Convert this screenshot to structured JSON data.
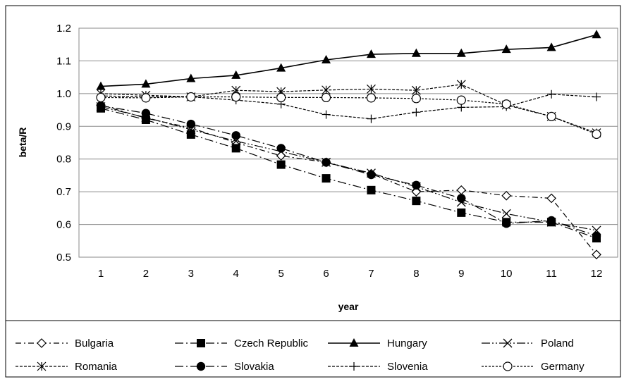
{
  "chart_data": {
    "type": "line",
    "title": "",
    "xlabel": "year",
    "ylabel": "beta/R",
    "x": [
      1,
      2,
      3,
      4,
      5,
      6,
      7,
      8,
      9,
      10,
      11,
      12
    ],
    "xticks": [
      "1",
      "2",
      "3",
      "4",
      "5",
      "6",
      "7",
      "8",
      "9",
      "10",
      "11",
      "12"
    ],
    "ylim": [
      0.5,
      1.2
    ],
    "yticks": [
      "0.5",
      "0.6",
      "0.7",
      "0.8",
      "0.9",
      "1.0",
      "1.1",
      "1.2"
    ],
    "grid": "horizontal",
    "legend_position": "bottom",
    "series": [
      {
        "name": "Bulgaria",
        "marker": "diamond-open",
        "dash": "dash-dot",
        "values": [
          0.965,
          0.925,
          0.895,
          0.85,
          0.81,
          0.79,
          0.755,
          0.7,
          0.705,
          0.688,
          0.68,
          0.508
        ]
      },
      {
        "name": "Czech Republic",
        "marker": "square-filled",
        "dash": "long-dash-dot",
        "values": [
          0.955,
          0.92,
          0.875,
          0.833,
          0.783,
          0.741,
          0.705,
          0.672,
          0.636,
          0.607,
          0.607,
          0.558
        ]
      },
      {
        "name": "Hungary",
        "marker": "triangle-filled",
        "dash": "solid",
        "values": [
          1.022,
          1.029,
          1.046,
          1.056,
          1.078,
          1.103,
          1.12,
          1.123,
          1.123,
          1.135,
          1.141,
          1.18
        ]
      },
      {
        "name": "Poland",
        "marker": "x",
        "dash": "long-dash-dot-dot",
        "values": [
          0.96,
          0.927,
          0.89,
          0.855,
          0.823,
          0.79,
          0.757,
          0.715,
          0.668,
          0.633,
          0.607,
          0.582
        ]
      },
      {
        "name": "Romania",
        "marker": "asterisk",
        "dash": "short-dash",
        "values": [
          1.0,
          0.995,
          0.99,
          1.01,
          1.006,
          1.011,
          1.014,
          1.01,
          1.028,
          0.965,
          0.93,
          0.88
        ]
      },
      {
        "name": "Slovakia",
        "marker": "circle-filled",
        "dash": "long-dash-dot",
        "values": [
          0.963,
          0.94,
          0.907,
          0.872,
          0.833,
          0.79,
          0.752,
          0.72,
          0.68,
          0.603,
          0.612,
          0.565
        ]
      },
      {
        "name": "Slovenia",
        "marker": "plus",
        "dash": "short-dash",
        "values": [
          0.993,
          0.99,
          0.99,
          0.98,
          0.968,
          0.936,
          0.923,
          0.943,
          0.958,
          0.96,
          0.998,
          0.99
        ]
      },
      {
        "name": "Germany",
        "marker": "circle-open",
        "dash": "fine-dash",
        "values": [
          0.988,
          0.987,
          0.99,
          0.99,
          0.988,
          0.988,
          0.987,
          0.985,
          0.98,
          0.968,
          0.93,
          0.876
        ]
      }
    ]
  }
}
